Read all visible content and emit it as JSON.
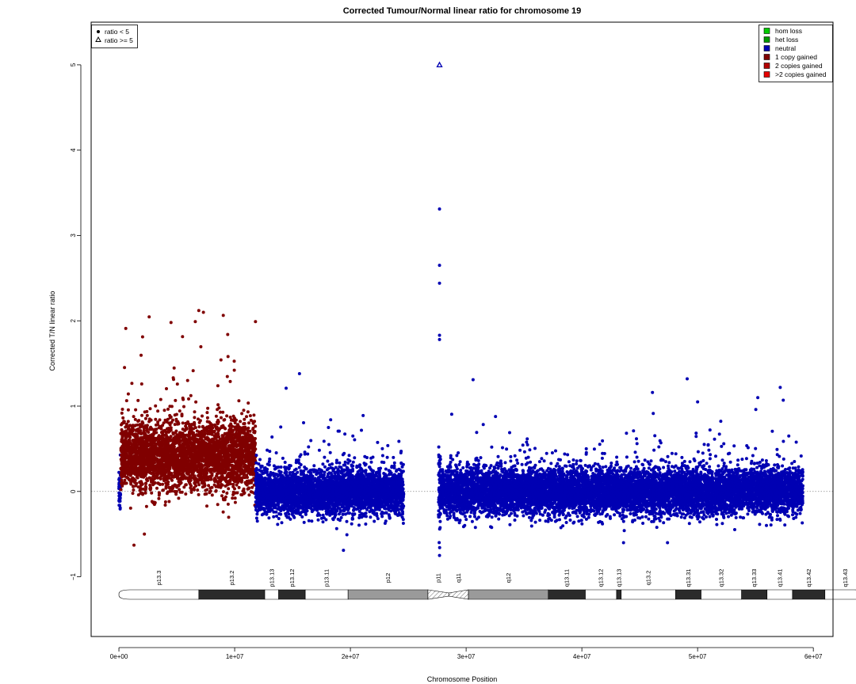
{
  "chart_data": {
    "type": "scatter",
    "title": "Corrected Tumour/Normal linear ratio for chromosome  19",
    "xlabel": "Chromosome Position",
    "ylabel": "Corrected T/N linear ratio",
    "xlim": [
      -2400000,
      61700000
    ],
    "ylim": [
      -1.7,
      5.5
    ],
    "x_ticks": [
      0,
      10000000,
      20000000,
      30000000,
      40000000,
      50000000,
      60000000
    ],
    "x_tick_labels": [
      "0e+00",
      "1e+07",
      "2e+07",
      "3e+07",
      "4e+07",
      "5e+07",
      "6e+07"
    ],
    "y_ticks": [
      -1,
      0,
      1,
      2,
      3,
      4,
      5
    ],
    "y_tick_labels": [
      "−1",
      "0",
      "1",
      "2",
      "3",
      "4",
      "5"
    ],
    "reference_line_y": 0,
    "shape_legend": {
      "position": "top-left",
      "entries": [
        {
          "label": "ratio < 5",
          "shape": "filled-circle"
        },
        {
          "label": "ratio >= 5",
          "shape": "open-triangle"
        }
      ]
    },
    "color_legend": {
      "position": "top-right",
      "entries": [
        {
          "label": "hom loss",
          "color": "#00cc00"
        },
        {
          "label": "het loss",
          "color": "#009900"
        },
        {
          "label": "neutral",
          "color": "#0000b3"
        },
        {
          "label": "1 copy gained",
          "color": "#800000"
        },
        {
          "label": "2 copies gained",
          "color": "#b30000"
        },
        {
          "label": ">2 copies gained",
          "color": "#e60000"
        }
      ]
    },
    "segments": [
      {
        "state": "neutral",
        "start": 0,
        "end": 150000,
        "mean": 0.0,
        "sd": 0.13
      },
      {
        "state": "1 copy gained",
        "start": 150000,
        "end": 11800000,
        "mean": 0.42,
        "sd": 0.2
      },
      {
        "state": "neutral",
        "start": 11800000,
        "end": 24600000,
        "mean": 0.0,
        "sd": 0.13
      },
      {
        "state": "neutral",
        "start": 27600000,
        "end": 27800000,
        "mean": 0.0,
        "sd": 0.25
      },
      {
        "state": "neutral",
        "start": 27800000,
        "end": 59100000,
        "mean": 0.0,
        "sd": 0.13
      }
    ],
    "notable_points": [
      {
        "x": 27700000,
        "y": 5.0,
        "state": "neutral",
        "shape": "open-triangle"
      },
      {
        "x": 27700000,
        "y": 3.31,
        "state": "neutral"
      },
      {
        "x": 27700000,
        "y": 2.65,
        "state": "neutral"
      },
      {
        "x": 27700000,
        "y": 2.44,
        "state": "neutral"
      },
      {
        "x": 27700000,
        "y": 1.83,
        "state": "neutral"
      },
      {
        "x": 27700000,
        "y": 1.78,
        "state": "neutral"
      },
      {
        "x": 6900000,
        "y": 2.12,
        "state": "1 copy gained"
      },
      {
        "x": 7300000,
        "y": 2.1,
        "state": "1 copy gained"
      },
      {
        "x": 6600000,
        "y": 1.99,
        "state": "1 copy gained"
      },
      {
        "x": 11800000,
        "y": 1.99,
        "state": "1 copy gained"
      },
      {
        "x": 4500000,
        "y": 1.98,
        "state": "1 copy gained"
      },
      {
        "x": 9400000,
        "y": 1.84,
        "state": "1 copy gained"
      },
      {
        "x": 1300000,
        "y": -0.63,
        "state": "1 copy gained"
      },
      {
        "x": 2200000,
        "y": -0.5,
        "state": "1 copy gained"
      },
      {
        "x": 15600000,
        "y": 1.38,
        "state": "neutral"
      },
      {
        "x": 30600000,
        "y": 1.31,
        "state": "neutral"
      },
      {
        "x": 49100000,
        "y": 1.32,
        "state": "neutral"
      },
      {
        "x": 46100000,
        "y": 1.16,
        "state": "neutral"
      },
      {
        "x": 55200000,
        "y": 1.1,
        "state": "neutral"
      },
      {
        "x": 57400000,
        "y": 1.07,
        "state": "neutral"
      },
      {
        "x": 50000000,
        "y": 1.05,
        "state": "neutral"
      },
      {
        "x": 21100000,
        "y": 0.89,
        "state": "neutral"
      },
      {
        "x": 19400000,
        "y": -0.69,
        "state": "neutral"
      },
      {
        "x": 27700000,
        "y": -0.75,
        "state": "neutral"
      },
      {
        "x": 43600000,
        "y": -0.6,
        "state": "neutral"
      },
      {
        "x": 47400000,
        "y": -0.6,
        "state": "neutral"
      }
    ],
    "ideogram": {
      "bands": [
        {
          "name": "p13.3",
          "start": 0,
          "end": 6900000,
          "stain": "gneg"
        },
        {
          "name": "p13.2",
          "start": 6900000,
          "end": 12600000,
          "stain": "gpos75"
        },
        {
          "name": "p13.13",
          "start": 12600000,
          "end": 13800000,
          "stain": "gneg"
        },
        {
          "name": "p13.12",
          "start": 13800000,
          "end": 16100000,
          "stain": "gpos75"
        },
        {
          "name": "p13.11",
          "start": 16100000,
          "end": 19800000,
          "stain": "gneg"
        },
        {
          "name": "p12",
          "start": 19800000,
          "end": 26700000,
          "stain": "gvar"
        },
        {
          "name": "p11",
          "start": 26700000,
          "end": 28500000,
          "stain": "acen"
        },
        {
          "name": "q11",
          "start": 28500000,
          "end": 30200000,
          "stain": "acen"
        },
        {
          "name": "q12",
          "start": 30200000,
          "end": 37100000,
          "stain": "gvar"
        },
        {
          "name": "q13.11",
          "start": 37100000,
          "end": 40300000,
          "stain": "gpos75"
        },
        {
          "name": "q13.12",
          "start": 40300000,
          "end": 43000000,
          "stain": "gneg"
        },
        {
          "name": "q13.13",
          "start": 43000000,
          "end": 43400000,
          "stain": "gpos75"
        },
        {
          "name": "q13.2",
          "start": 43400000,
          "end": 48100000,
          "stain": "gneg"
        },
        {
          "name": "q13.31",
          "start": 48100000,
          "end": 50300000,
          "stain": "gpos75"
        },
        {
          "name": "q13.32",
          "start": 50300000,
          "end": 53800000,
          "stain": "gneg"
        },
        {
          "name": "q13.33",
          "start": 53800000,
          "end": 56000000,
          "stain": "gpos75"
        },
        {
          "name": "q13.41",
          "start": 56000000,
          "end": 58200000,
          "stain": "gneg"
        },
        {
          "name": "q13.42",
          "start": 58200000,
          "end": 61000000,
          "stain": "gpos75"
        },
        {
          "name": "q13.43",
          "start": 61000000,
          "end": 64500000,
          "stain": "gneg"
        }
      ]
    }
  }
}
